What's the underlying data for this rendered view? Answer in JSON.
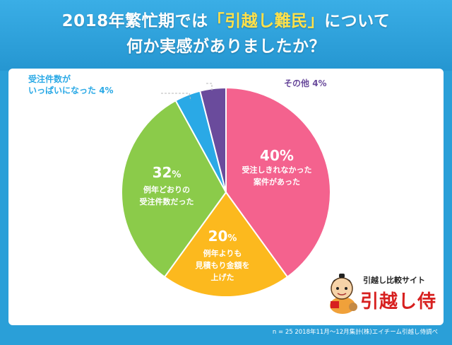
{
  "title": {
    "line1_prefix": "2018年繁忙期では",
    "line1_highlight": "「引越し難民」",
    "line1_suffix": "について",
    "line2": "何か実感がありましたか？"
  },
  "chart_data": {
    "type": "pie",
    "title": "2018年繁忙期では「引越し難民」について何か実感がありましたか？",
    "start_angle_deg": 0,
    "direction": "clockwise",
    "slices": [
      {
        "label_line1": "受注しきれなかった",
        "label_line2": "案件があった",
        "label_line3": "",
        "value": 40,
        "color": "#f4628e"
      },
      {
        "label_line1": "例年よりも",
        "label_line2": "見積もり金額を",
        "label_line3": "上げた",
        "value": 20,
        "color": "#fcb91e"
      },
      {
        "label_line1": "例年どおりの",
        "label_line2": "受注件数だった",
        "label_line3": "",
        "value": 32,
        "color": "#8bcb4a"
      },
      {
        "label_line1": "受注件数が",
        "label_line2": "いっぱいになった",
        "label_line3": "",
        "value": 4,
        "color": "#2aa9e6"
      },
      {
        "label_line1": "その他",
        "label_line2": "",
        "label_line3": "",
        "value": 4,
        "color": "#6a4b9c"
      }
    ],
    "percent_suffix": "%"
  },
  "outside_labels": {
    "busy": {
      "line1": "受注件数が",
      "line2": "いっぱいになった",
      "pct": "4%"
    },
    "other": {
      "line1": "その他",
      "pct": "4%"
    }
  },
  "logo": {
    "tagline": "引越し比較サイト",
    "name": "引越し侍"
  },
  "source": "n = 25  2018年11月〜12月集計(株)エイチーム引越し侍調べ",
  "colors": {
    "background": "#2a9fd8",
    "highlight": "#ffe14a",
    "busy_label": "#2aa9e6",
    "other_label": "#6a4b9c"
  }
}
